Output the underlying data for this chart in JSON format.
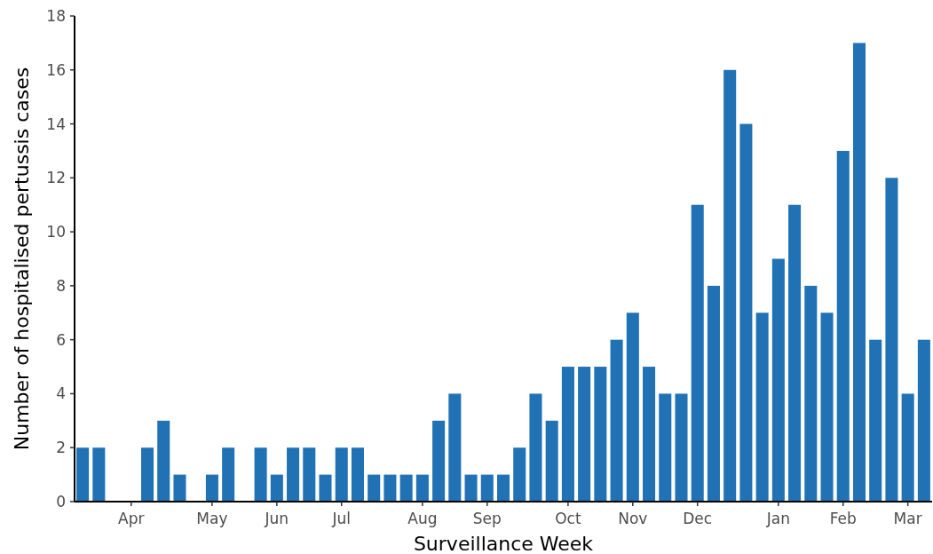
{
  "chart_data": {
    "type": "bar",
    "xlabel": "Surveillance Week",
    "ylabel": "Number of hospitalised pertussis cases",
    "color": "#2171b5",
    "categories": [
      null,
      null,
      null,
      "Apr",
      null,
      null,
      null,
      null,
      "May",
      null,
      null,
      null,
      "Jun",
      null,
      null,
      null,
      "Jul",
      null,
      null,
      null,
      null,
      "Aug",
      null,
      null,
      null,
      "Sep",
      null,
      null,
      null,
      null,
      "Oct",
      null,
      null,
      null,
      "Nov",
      null,
      null,
      null,
      "Dec",
      null,
      null,
      null,
      null,
      "Jan",
      null,
      null,
      null,
      "Feb",
      null,
      null,
      null,
      "Mar",
      null
    ],
    "values": [
      2,
      2,
      0,
      0,
      2,
      3,
      1,
      0,
      1,
      2,
      0,
      2,
      1,
      2,
      2,
      1,
      2,
      2,
      1,
      1,
      1,
      1,
      3,
      4,
      1,
      1,
      1,
      2,
      4,
      3,
      5,
      5,
      5,
      6,
      7,
      5,
      4,
      4,
      11,
      8,
      16,
      14,
      7,
      9,
      11,
      8,
      7,
      13,
      17,
      6,
      12,
      4,
      6
    ],
    "ylim": [
      0,
      18
    ],
    "yticks": [
      0,
      2,
      4,
      6,
      8,
      10,
      12,
      14,
      16,
      18
    ],
    "grid": false
  }
}
